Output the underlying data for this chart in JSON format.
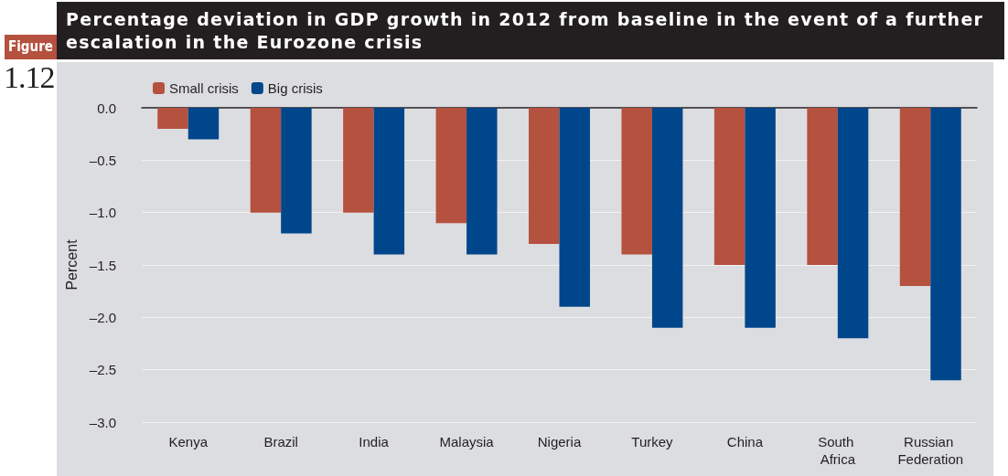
{
  "chart_data": {
    "type": "bar",
    "title": "Percentage deviation in GDP growth in 2012 from baseline in the event of a further escalation in the Eurozone crisis",
    "annotations": [
      "Figure",
      "1.12"
    ],
    "ylabel": "Percent",
    "categories": [
      "Kenya",
      "Brazil",
      "India",
      "Malaysia",
      "Nigeria",
      "Turkey",
      "China",
      "South Africa",
      "Russian Federation"
    ],
    "series": [
      {
        "name": "Small crisis",
        "color": "#b5513f",
        "values": [
          -0.2,
          -1.0,
          -1.0,
          -1.1,
          -1.3,
          -1.4,
          -1.5,
          -1.5,
          -1.7
        ]
      },
      {
        "name": "Big crisis",
        "color": "#00468b",
        "values": [
          -0.3,
          -1.2,
          -1.4,
          -1.4,
          -1.9,
          -2.1,
          -2.1,
          -2.2,
          -2.6
        ]
      }
    ],
    "ylim": [
      -3.0,
      0.0
    ],
    "yticks": [
      {
        "value": -3.0,
        "label": "–3.0"
      },
      {
        "value": -2.5,
        "label": "–2.5"
      },
      {
        "value": -2.0,
        "label": "–2.0"
      },
      {
        "value": -1.5,
        "label": "–1.5"
      },
      {
        "value": -1.0,
        "label": "–1.0"
      },
      {
        "value": -0.5,
        "label": "–0.5"
      },
      {
        "value": 0.0,
        "label": "0.0"
      }
    ],
    "grid": "y",
    "legend": "top left"
  }
}
